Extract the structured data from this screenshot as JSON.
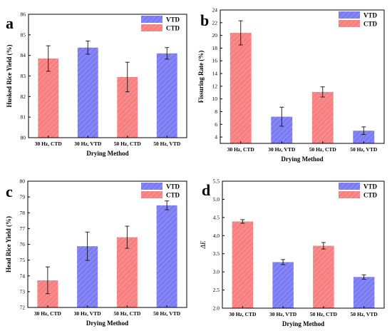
{
  "colors": {
    "vtd": "#7b7bf4",
    "ctd": "#f87f7f"
  },
  "chart_data": [
    {
      "id": "a",
      "type": "bar",
      "panel_label": "a",
      "categories": [
        "30 Hz, CTD",
        "30 Hz, VTD",
        "50 Hz, CTD",
        "50 Hz, VTD"
      ],
      "values": [
        83.85,
        84.38,
        82.95,
        84.1
      ],
      "errors": [
        0.62,
        0.32,
        0.72,
        0.28
      ],
      "groups": [
        "CTD",
        "VTD",
        "CTD",
        "VTD"
      ],
      "xlabel": "Drying Method",
      "ylabel": "Husked Rice Yield (%)",
      "ylim": [
        80,
        86
      ],
      "yticks": [
        80,
        81,
        82,
        83,
        84,
        85,
        86
      ],
      "legend": [
        "VTD",
        "CTD"
      ],
      "legend_position": "top-right"
    },
    {
      "id": "b",
      "type": "bar",
      "panel_label": "b",
      "categories": [
        "30 Hz, CTD",
        "30 Hz, VTD",
        "50 Hz, CTD",
        "50 Hz, VTD"
      ],
      "values": [
        20.4,
        7.2,
        11.1,
        5.0
      ],
      "errors": [
        1.9,
        1.5,
        0.8,
        0.6
      ],
      "groups": [
        "CTD",
        "VTD",
        "CTD",
        "VTD"
      ],
      "xlabel": "Drying Method",
      "ylabel": "Fissuring Rate (%)",
      "ylim": [
        3,
        24
      ],
      "yticks": [
        4,
        6,
        8,
        10,
        12,
        14,
        16,
        18,
        20,
        22,
        24
      ],
      "legend": [
        "VTD",
        "CTD"
      ],
      "legend_position": "top-right"
    },
    {
      "id": "c",
      "type": "bar",
      "panel_label": "c",
      "categories": [
        "30 Hz, CTD",
        "30 Hz, VTD",
        "50 Hz, CTD",
        "50 Hz, VTD"
      ],
      "values": [
        73.72,
        75.88,
        76.45,
        78.47
      ],
      "errors": [
        0.85,
        0.9,
        0.7,
        0.28
      ],
      "groups": [
        "CTD",
        "VTD",
        "CTD",
        "VTD"
      ],
      "xlabel": "Drying Method",
      "ylabel": "Head Rice Yield (%)",
      "ylim": [
        72,
        80
      ],
      "yticks": [
        72,
        73,
        74,
        75,
        76,
        77,
        78,
        79,
        80
      ],
      "legend": [
        "VTD",
        "CTD"
      ],
      "legend_position": "top-right"
    },
    {
      "id": "d",
      "type": "bar",
      "panel_label": "d",
      "categories": [
        "30 Hz, CTD",
        "30 Hz, VTD",
        "50 Hz, CTD",
        "50 Hz, VTD"
      ],
      "values": [
        4.39,
        3.27,
        3.72,
        2.86
      ],
      "errors": [
        0.05,
        0.07,
        0.09,
        0.06
      ],
      "groups": [
        "CTD",
        "VTD",
        "CTD",
        "VTD"
      ],
      "xlabel": "Drying Method",
      "ylabel": "ΔE",
      "ylim": [
        2.0,
        5.5
      ],
      "yticks": [
        "2.0",
        "2.5",
        "3.0",
        "3.5",
        "4.0",
        "4.5",
        "5.0",
        "5.5"
      ],
      "legend": [
        "VTD",
        "CTD"
      ],
      "legend_position": "top-right"
    }
  ]
}
